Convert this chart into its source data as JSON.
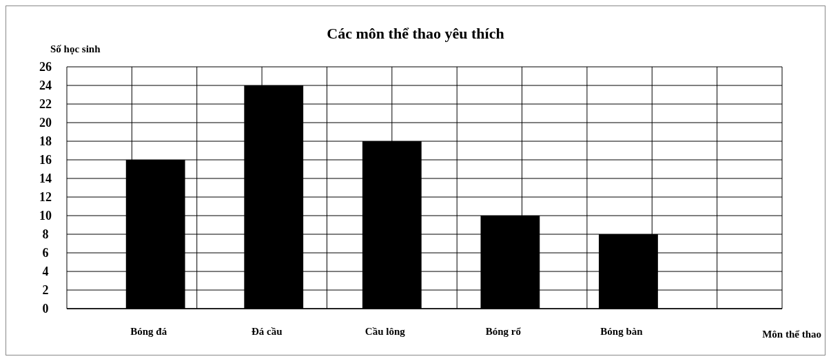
{
  "chart_data": {
    "type": "bar",
    "title": "Các môn thể thao yêu thích",
    "annotations": [
      "Môn thể thao"
    ],
    "ylabel": "Số học sinh",
    "categories": [
      "Bóng đá",
      "Đá cầu",
      "Cầu lông",
      "Bóng rổ",
      "Bóng bàn"
    ],
    "values": [
      16,
      24,
      18,
      10,
      8
    ],
    "color": "#000000",
    "ylim": [
      0,
      26
    ],
    "yticks": [
      0,
      2,
      4,
      6,
      8,
      10,
      12,
      14,
      16,
      18,
      20,
      22,
      24,
      26
    ],
    "grid": true
  }
}
